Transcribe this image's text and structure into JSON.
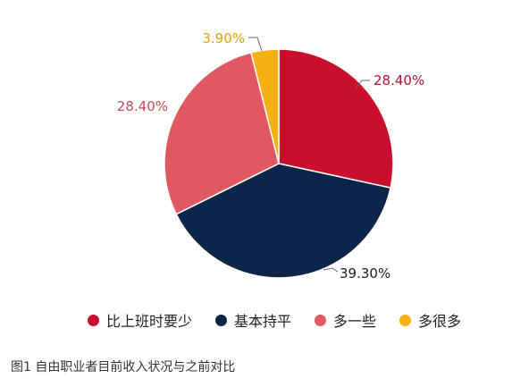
{
  "chart_data": {
    "type": "pie",
    "slices": [
      {
        "label": "比上班时要少",
        "value": 28.4,
        "value_label": "28.40%",
        "color": "#c8102e"
      },
      {
        "label": "基本持平",
        "value": 39.3,
        "value_label": "39.30%",
        "color": "#0d2548"
      },
      {
        "label": "多一些",
        "value": 28.4,
        "value_label": "28.40%",
        "color": "#e25861"
      },
      {
        "label": "多很多",
        "value": 3.9,
        "value_label": "3.90%",
        "color": "#f5b013"
      }
    ],
    "legend_position": "bottom",
    "label_colors": [
      "#b41232",
      "#1b1b1b",
      "#c84a52",
      "#e2a010"
    ]
  },
  "caption": "图1 自由职业者目前收入状况与之前对比"
}
